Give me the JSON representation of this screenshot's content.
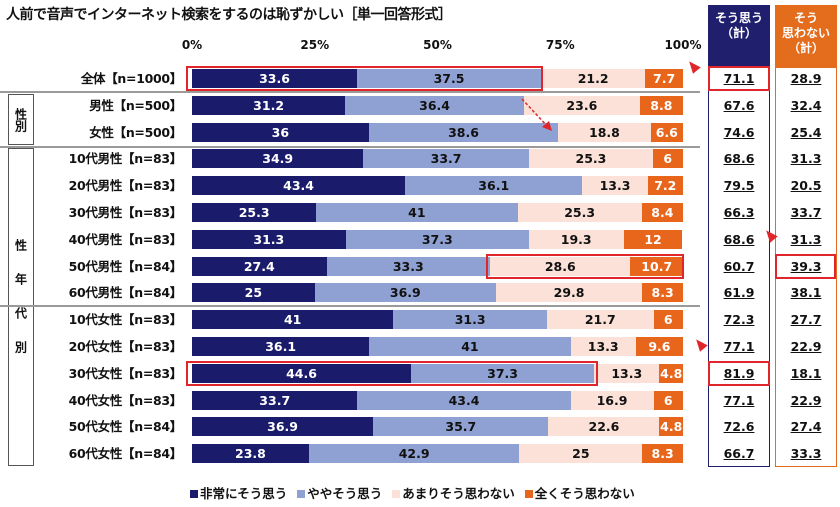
{
  "title": "人前で音声でインターネット検索をするのは恥ずかしい［単一回答形式］",
  "chart_data": {
    "type": "bar",
    "orientation": "horizontal-stacked-100",
    "title": "人前で音声でインターネット検索をするのは恥ずかしい［単一回答形式］",
    "xlim": [
      0,
      100
    ],
    "x_ticks": [
      "0%",
      "25%",
      "50%",
      "75%",
      "100%"
    ],
    "legend_position": "bottom",
    "groups": [
      {
        "label": "性別",
        "rows": [
          1,
          2
        ]
      },
      {
        "label": "性年代別",
        "rows": [
          3,
          14
        ]
      }
    ],
    "categories": [
      "全体【n=1000】",
      "男性【n=500】",
      "女性【n=500】",
      "10代男性【n=83】",
      "20代男性【n=83】",
      "30代男性【n=83】",
      "40代男性【n=83】",
      "50代男性【n=84】",
      "60代男性【n=84】",
      "10代女性【n=83】",
      "20代女性【n=83】",
      "30代女性【n=83】",
      "40代女性【n=83】",
      "50代女性【n=84】",
      "60代女性【n=84】"
    ],
    "series": [
      {
        "name": "非常にそう思う",
        "color": "#1b1b6b",
        "text_color": "#ffffff",
        "values": [
          33.6,
          31.2,
          36.0,
          34.9,
          43.4,
          25.3,
          31.3,
          27.4,
          25.0,
          41.0,
          36.1,
          44.6,
          33.7,
          36.9,
          23.8
        ]
      },
      {
        "name": "ややそう思う",
        "color": "#8fa0d2",
        "text_color": "#111111",
        "values": [
          37.5,
          36.4,
          38.6,
          33.7,
          36.1,
          41.0,
          37.3,
          33.3,
          36.9,
          31.3,
          41.0,
          37.3,
          43.4,
          35.7,
          42.9
        ]
      },
      {
        "name": "あまりそう思わない",
        "color": "#fbe1d7",
        "text_color": "#111111",
        "values": [
          21.2,
          23.6,
          18.8,
          25.3,
          13.3,
          25.3,
          19.3,
          28.6,
          29.8,
          21.7,
          13.3,
          13.3,
          16.9,
          22.6,
          25.0
        ]
      },
      {
        "name": "全くそう思わない",
        "color": "#e8651c",
        "text_color": "#ffffff",
        "values": [
          7.7,
          8.8,
          6.6,
          6.0,
          7.2,
          8.4,
          12.0,
          10.7,
          8.3,
          6.0,
          9.6,
          4.8,
          6.0,
          4.8,
          8.3
        ]
      }
    ],
    "summary_columns": [
      {
        "label_lines": [
          "そう思う",
          "（計）"
        ],
        "color": "#1f1f6e",
        "values": [
          "71.1",
          "67.6",
          "74.6",
          "68.6",
          "79.5",
          "66.3",
          "68.6",
          "60.7",
          "61.9",
          "72.3",
          "77.1",
          "81.9",
          "77.1",
          "72.6",
          "66.7"
        ]
      },
      {
        "label_lines": [
          "そう",
          "思わない",
          "（計）"
        ],
        "color": "#e36c1d",
        "values": [
          "28.9",
          "32.4",
          "25.4",
          "31.3",
          "20.5",
          "33.7",
          "31.3",
          "39.3",
          "38.1",
          "27.7",
          "22.9",
          "18.1",
          "22.9",
          "27.4",
          "33.3"
        ]
      }
    ],
    "highlight_color": "#e0262b"
  }
}
